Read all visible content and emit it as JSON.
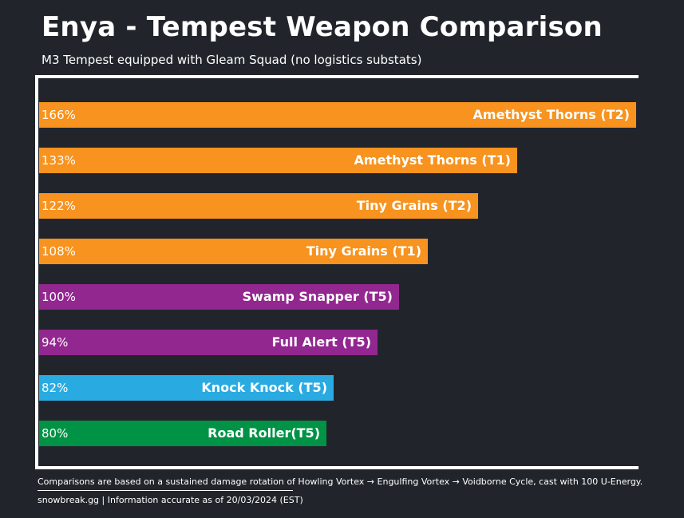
{
  "chart_data": {
    "type": "bar",
    "orientation": "horizontal",
    "title": "Enya - Tempest Weapon Comparison",
    "subtitle": "M3 Tempest equipped with Gleam Squad (no logistics substats)",
    "xlim": [
      0,
      166
    ],
    "bars": [
      {
        "label": "Amethyst Thorns (T2)",
        "value": 166,
        "value_label": "166%",
        "color": "#f7931e"
      },
      {
        "label": "Amethyst Thorns (T1)",
        "value": 133,
        "value_label": "133%",
        "color": "#f7931e"
      },
      {
        "label": "Tiny Grains (T2)",
        "value": 122,
        "value_label": "122%",
        "color": "#f7931e"
      },
      {
        "label": "Tiny Grains (T1)",
        "value": 108,
        "value_label": "108%",
        "color": "#f7931e"
      },
      {
        "label": "Swamp Snapper (T5)",
        "value": 100,
        "value_label": "100%",
        "color": "#92278f"
      },
      {
        "label": "Full Alert (T5)",
        "value": 94,
        "value_label": "94%",
        "color": "#92278f"
      },
      {
        "label": "Knock Knock (T5)",
        "value": 82,
        "value_label": "82%",
        "color": "#29abe2"
      },
      {
        "label": "Road Roller(T5)",
        "value": 80,
        "value_label": "80%",
        "color": "#009245"
      }
    ]
  },
  "footnote": "Comparisons are based on a sustained damage rotation of Howling Vortex → Engulfing Vortex → Voidborne Cycle, cast with 100 U-Energy.",
  "source": "snowbreak.gg | Information accurate as of 20/03/2024 (EST)"
}
